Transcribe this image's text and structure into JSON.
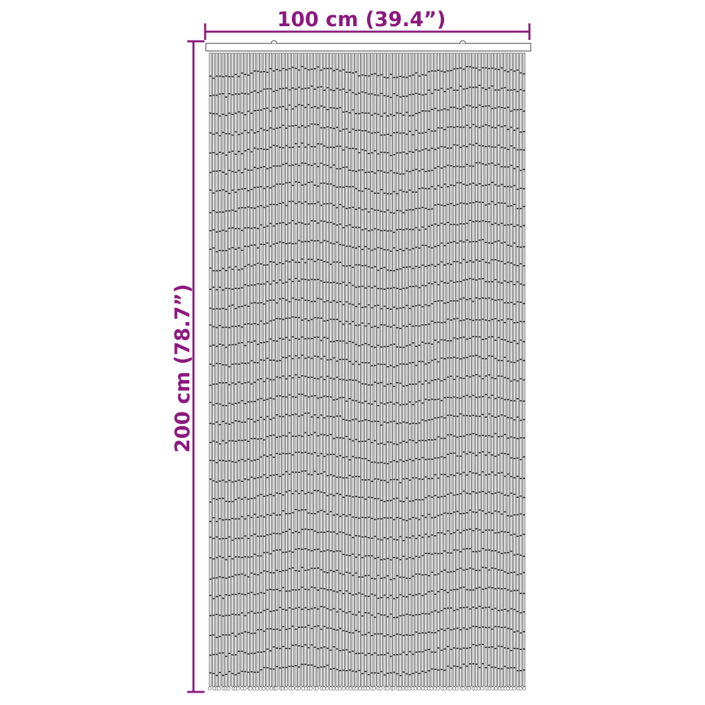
{
  "dimensions": {
    "width_label": "100 cm (39.4”)",
    "height_label": "200 cm (78.7”)"
  },
  "colors": {
    "dimension": "#8b1a7e",
    "outline": "#333333",
    "strand_fill": "#e4e4e4"
  },
  "product": {
    "type": "bead door curtain"
  }
}
